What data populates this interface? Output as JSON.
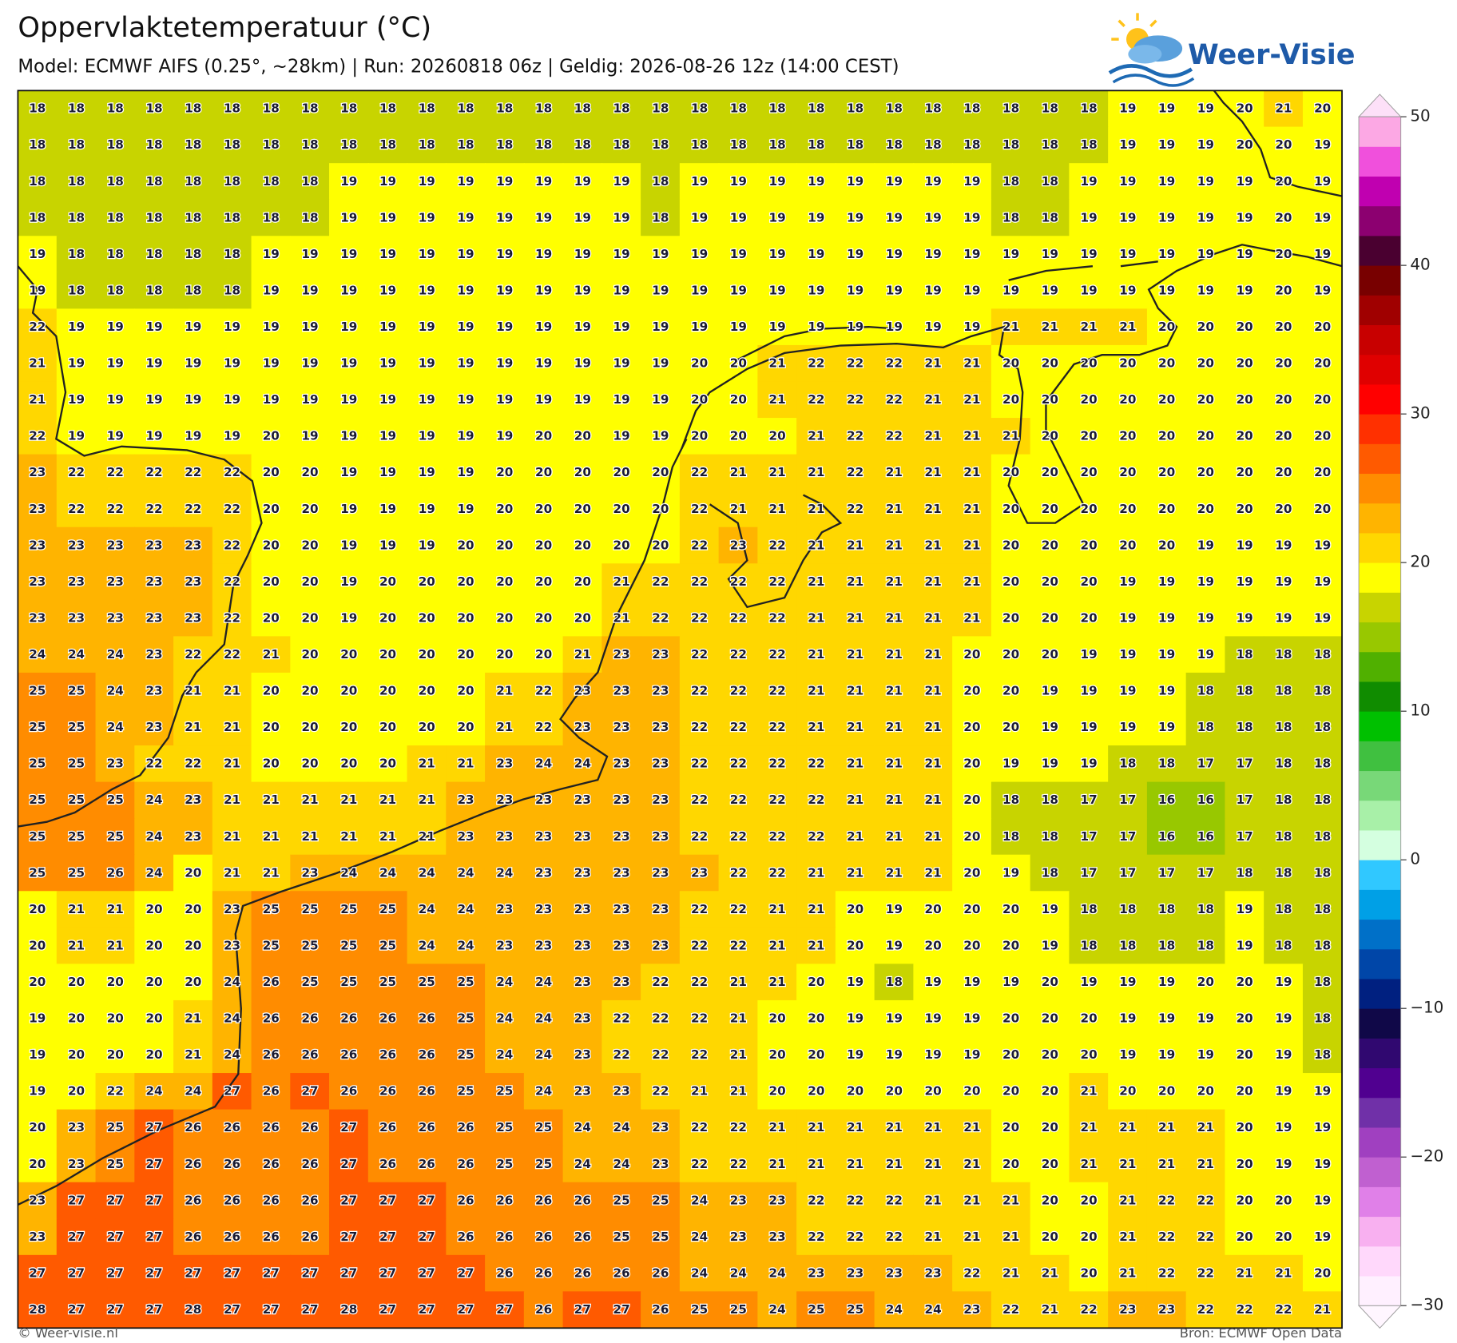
{
  "header": {
    "title": "Oppervlaktetemperatuur (°C)",
    "subtitle": "Model: ECMWF AIFS (0.25°, ~28km)  |  Run: 20260818 06z  |  Geldig: 2026-08-26 12z (14:00 CEST)"
  },
  "logo": "Weer-Visie",
  "map": {
    "type": "grid",
    "rows": [
      [
        18,
        18,
        18,
        18,
        18,
        18,
        18,
        18,
        18,
        18,
        18,
        18,
        18,
        18,
        18,
        18,
        18,
        18,
        18,
        18,
        18,
        18,
        18,
        18,
        18,
        18,
        18,
        18,
        19,
        19,
        19,
        20,
        21,
        20
      ],
      [
        18,
        18,
        18,
        18,
        18,
        18,
        18,
        18,
        18,
        18,
        18,
        18,
        18,
        18,
        18,
        18,
        18,
        18,
        18,
        18,
        18,
        18,
        18,
        18,
        18,
        18,
        18,
        18,
        19,
        19,
        19,
        20,
        20,
        19
      ],
      [
        18,
        18,
        18,
        18,
        18,
        18,
        18,
        18,
        19,
        19,
        19,
        19,
        19,
        19,
        19,
        19,
        18,
        19,
        19,
        19,
        19,
        19,
        19,
        19,
        19,
        18,
        18,
        19,
        19,
        19,
        19,
        19,
        20,
        19
      ],
      [
        18,
        18,
        18,
        18,
        18,
        18,
        18,
        18,
        19,
        19,
        19,
        19,
        19,
        19,
        19,
        19,
        18,
        19,
        19,
        19,
        19,
        19,
        19,
        19,
        19,
        18,
        18,
        19,
        19,
        19,
        19,
        19,
        20,
        19
      ],
      [
        19,
        18,
        18,
        18,
        18,
        18,
        19,
        19,
        19,
        19,
        19,
        19,
        19,
        19,
        19,
        19,
        19,
        19,
        19,
        19,
        19,
        19,
        19,
        19,
        19,
        19,
        19,
        19,
        19,
        19,
        19,
        19,
        20,
        19
      ],
      [
        19,
        18,
        18,
        18,
        18,
        18,
        19,
        19,
        19,
        19,
        19,
        19,
        19,
        19,
        19,
        19,
        19,
        19,
        19,
        19,
        19,
        19,
        19,
        19,
        19,
        19,
        19,
        19,
        19,
        19,
        19,
        19,
        20,
        19
      ],
      [
        22,
        19,
        19,
        19,
        19,
        19,
        19,
        19,
        19,
        19,
        19,
        19,
        19,
        19,
        19,
        19,
        19,
        19,
        19,
        19,
        19,
        19,
        19,
        19,
        19,
        21,
        21,
        21,
        21,
        20,
        20,
        20,
        20,
        20
      ],
      [
        21,
        19,
        19,
        19,
        19,
        19,
        19,
        19,
        19,
        19,
        19,
        19,
        19,
        19,
        19,
        19,
        19,
        20,
        20,
        21,
        22,
        22,
        22,
        21,
        21,
        20,
        20,
        20,
        20,
        20,
        20,
        20,
        20,
        20
      ],
      [
        21,
        19,
        19,
        19,
        19,
        19,
        19,
        19,
        19,
        19,
        19,
        19,
        19,
        19,
        19,
        19,
        19,
        20,
        20,
        21,
        22,
        22,
        22,
        21,
        21,
        20,
        20,
        20,
        20,
        20,
        20,
        20,
        20,
        20
      ],
      [
        22,
        19,
        19,
        19,
        19,
        19,
        20,
        19,
        19,
        19,
        19,
        19,
        19,
        20,
        20,
        19,
        19,
        20,
        20,
        20,
        21,
        22,
        22,
        21,
        21,
        21,
        20,
        20,
        20,
        20,
        20,
        20,
        20,
        20
      ],
      [
        23,
        22,
        22,
        22,
        22,
        22,
        20,
        20,
        19,
        19,
        19,
        19,
        20,
        20,
        20,
        20,
        20,
        22,
        21,
        21,
        21,
        22,
        21,
        21,
        21,
        20,
        20,
        20,
        20,
        20,
        20,
        20,
        20,
        20
      ],
      [
        23,
        22,
        22,
        22,
        22,
        22,
        20,
        20,
        19,
        19,
        19,
        19,
        20,
        20,
        20,
        20,
        20,
        22,
        21,
        21,
        21,
        22,
        21,
        21,
        21,
        20,
        20,
        20,
        20,
        20,
        20,
        20,
        20,
        20
      ],
      [
        23,
        23,
        23,
        23,
        23,
        22,
        20,
        20,
        19,
        19,
        19,
        20,
        20,
        20,
        20,
        20,
        20,
        22,
        23,
        22,
        21,
        21,
        21,
        21,
        21,
        20,
        20,
        20,
        20,
        20,
        19,
        19,
        19,
        19
      ],
      [
        23,
        23,
        23,
        23,
        23,
        22,
        20,
        20,
        19,
        20,
        20,
        20,
        20,
        20,
        20,
        21,
        22,
        22,
        22,
        22,
        21,
        21,
        21,
        21,
        21,
        20,
        20,
        20,
        19,
        19,
        19,
        19,
        19,
        19
      ],
      [
        23,
        23,
        23,
        23,
        23,
        22,
        20,
        20,
        19,
        20,
        20,
        20,
        20,
        20,
        20,
        21,
        22,
        22,
        22,
        22,
        21,
        21,
        21,
        21,
        21,
        20,
        20,
        20,
        19,
        19,
        19,
        19,
        19,
        19
      ],
      [
        24,
        24,
        24,
        23,
        22,
        22,
        21,
        20,
        20,
        20,
        20,
        20,
        20,
        20,
        21,
        23,
        23,
        22,
        22,
        22,
        21,
        21,
        21,
        21,
        20,
        20,
        20,
        19,
        19,
        19,
        19,
        18,
        18,
        18
      ],
      [
        25,
        25,
        24,
        23,
        21,
        21,
        20,
        20,
        20,
        20,
        20,
        20,
        21,
        22,
        23,
        23,
        23,
        22,
        22,
        22,
        21,
        21,
        21,
        21,
        20,
        20,
        19,
        19,
        19,
        19,
        18,
        18,
        18,
        18
      ],
      [
        25,
        25,
        24,
        23,
        21,
        21,
        20,
        20,
        20,
        20,
        20,
        20,
        21,
        22,
        23,
        23,
        23,
        22,
        22,
        22,
        21,
        21,
        21,
        21,
        20,
        20,
        19,
        19,
        19,
        19,
        18,
        18,
        18,
        18
      ],
      [
        25,
        25,
        23,
        22,
        22,
        21,
        20,
        20,
        20,
        20,
        21,
        21,
        23,
        24,
        24,
        23,
        23,
        22,
        22,
        22,
        22,
        21,
        21,
        21,
        20,
        19,
        19,
        19,
        18,
        18,
        17,
        17,
        18,
        18
      ],
      [
        25,
        25,
        25,
        24,
        23,
        21,
        21,
        21,
        21,
        21,
        21,
        23,
        23,
        23,
        23,
        23,
        23,
        22,
        22,
        22,
        22,
        21,
        21,
        21,
        20,
        18,
        18,
        17,
        17,
        16,
        16,
        17,
        18,
        18
      ],
      [
        25,
        25,
        25,
        24,
        23,
        21,
        21,
        21,
        21,
        21,
        21,
        23,
        23,
        23,
        23,
        23,
        23,
        22,
        22,
        22,
        22,
        21,
        21,
        21,
        20,
        18,
        18,
        17,
        17,
        16,
        16,
        17,
        18,
        18
      ],
      [
        25,
        25,
        26,
        24,
        20,
        21,
        21,
        23,
        24,
        24,
        24,
        24,
        24,
        23,
        23,
        23,
        23,
        23,
        22,
        22,
        21,
        21,
        21,
        21,
        20,
        19,
        18,
        17,
        17,
        17,
        17,
        18,
        18,
        18
      ],
      [
        20,
        21,
        21,
        20,
        20,
        23,
        25,
        25,
        25,
        25,
        24,
        24,
        23,
        23,
        23,
        23,
        23,
        22,
        22,
        21,
        21,
        20,
        19,
        20,
        20,
        20,
        19,
        18,
        18,
        18,
        18,
        19,
        18,
        18
      ],
      [
        20,
        21,
        21,
        20,
        20,
        23,
        25,
        25,
        25,
        25,
        24,
        24,
        23,
        23,
        23,
        23,
        23,
        22,
        22,
        21,
        21,
        20,
        19,
        20,
        20,
        20,
        19,
        18,
        18,
        18,
        18,
        19,
        18,
        18
      ],
      [
        20,
        20,
        20,
        20,
        20,
        24,
        26,
        25,
        25,
        25,
        25,
        25,
        24,
        24,
        23,
        23,
        22,
        22,
        21,
        21,
        20,
        19,
        18,
        19,
        19,
        19,
        20,
        19,
        19,
        19,
        20,
        20,
        19,
        18
      ],
      [
        19,
        20,
        20,
        20,
        21,
        24,
        26,
        26,
        26,
        26,
        26,
        25,
        24,
        24,
        23,
        22,
        22,
        22,
        21,
        20,
        20,
        19,
        19,
        19,
        19,
        20,
        20,
        20,
        19,
        19,
        19,
        20,
        19,
        18
      ],
      [
        19,
        20,
        20,
        20,
        21,
        24,
        26,
        26,
        26,
        26,
        26,
        25,
        24,
        24,
        23,
        22,
        22,
        22,
        21,
        20,
        20,
        19,
        19,
        19,
        19,
        20,
        20,
        20,
        19,
        19,
        19,
        20,
        19,
        18
      ],
      [
        19,
        20,
        22,
        24,
        24,
        27,
        26,
        27,
        26,
        26,
        26,
        25,
        25,
        24,
        23,
        23,
        22,
        21,
        21,
        20,
        20,
        20,
        20,
        20,
        20,
        20,
        20,
        21,
        20,
        20,
        20,
        20,
        19,
        19
      ],
      [
        20,
        23,
        25,
        27,
        26,
        26,
        26,
        26,
        27,
        26,
        26,
        26,
        25,
        25,
        24,
        24,
        23,
        22,
        22,
        21,
        21,
        21,
        21,
        21,
        21,
        20,
        20,
        21,
        21,
        21,
        21,
        20,
        19,
        19
      ],
      [
        20,
        23,
        25,
        27,
        26,
        26,
        26,
        26,
        27,
        26,
        26,
        26,
        25,
        25,
        24,
        24,
        23,
        22,
        22,
        21,
        21,
        21,
        21,
        21,
        21,
        20,
        20,
        21,
        21,
        21,
        21,
        20,
        19,
        19
      ],
      [
        23,
        27,
        27,
        27,
        26,
        26,
        26,
        26,
        27,
        27,
        27,
        26,
        26,
        26,
        26,
        25,
        25,
        24,
        23,
        23,
        22,
        22,
        22,
        21,
        21,
        21,
        20,
        20,
        21,
        22,
        22,
        20,
        20,
        19
      ],
      [
        23,
        27,
        27,
        27,
        26,
        26,
        26,
        26,
        27,
        27,
        27,
        26,
        26,
        26,
        26,
        25,
        25,
        24,
        23,
        23,
        22,
        22,
        22,
        21,
        21,
        21,
        20,
        20,
        21,
        22,
        22,
        20,
        20,
        19
      ],
      [
        27,
        27,
        27,
        27,
        27,
        27,
        27,
        27,
        27,
        27,
        27,
        27,
        26,
        26,
        26,
        26,
        26,
        24,
        24,
        24,
        23,
        23,
        23,
        23,
        22,
        21,
        21,
        20,
        21,
        22,
        22,
        21,
        21,
        20
      ],
      [
        28,
        27,
        27,
        27,
        28,
        27,
        27,
        27,
        28,
        27,
        27,
        27,
        27,
        26,
        27,
        27,
        26,
        25,
        25,
        24,
        25,
        25,
        24,
        24,
        23,
        22,
        21,
        22,
        23,
        23,
        22,
        22,
        22,
        21
      ]
    ],
    "colorbar": {
      "lim": [
        -30,
        50
      ],
      "ticks": [
        50,
        40,
        30,
        20,
        10,
        0,
        {
          "value": -10,
          "label": "−10"
        },
        {
          "value": -20,
          "label": "−20"
        },
        {
          "value": -30,
          "label": "−30"
        }
      ],
      "colors": [
        "#fff0ff",
        "#ffd8fb",
        "#f8b0f0",
        "#e080e8",
        "#c060d0",
        "#a040c0",
        "#7030a8",
        "#500090",
        "#300870",
        "#100848",
        "#002080",
        "#0046a8",
        "#0070c8",
        "#00a0e6",
        "#30c8ff",
        "#d4ffe0",
        "#a8f0a8",
        "#78d878",
        "#40c040",
        "#00c000",
        "#108c00",
        "#50b000",
        "#98c800",
        "#c8d400",
        "#ffff00",
        "#ffd700",
        "#ffb400",
        "#ff8c00",
        "#ff5a00",
        "#ff3000",
        "#ff0000",
        "#e00000",
        "#c80000",
        "#a00000",
        "#780000",
        "#4a0030",
        "#8c0070",
        "#c000b0",
        "#f050dc",
        "#fca8e4"
      ]
    }
  },
  "footer": {
    "left": "© Weer-visie.nl",
    "right": "Bron: ECMWF Open Data"
  }
}
